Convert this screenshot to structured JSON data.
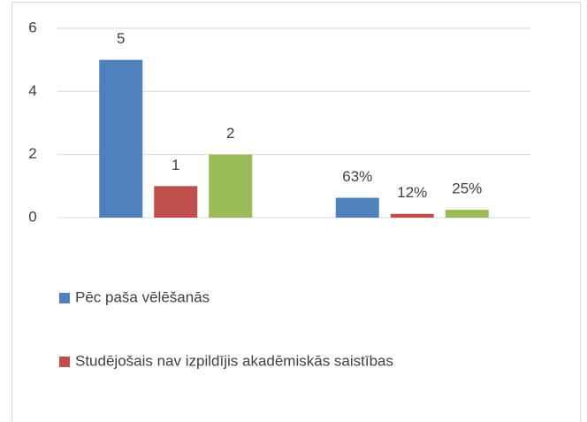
{
  "chart_data": {
    "type": "bar",
    "categories": [
      null,
      null
    ],
    "series": [
      {
        "name": "Pēc paša vēlēšanās",
        "color": "#4f81bd",
        "values": [
          5,
          0.63
        ],
        "value_labels": [
          "5",
          "63%"
        ]
      },
      {
        "name": "Studējošais nav izpildījis akadēmiskās saistības",
        "color": "#c0504d",
        "values": [
          1,
          0.12
        ],
        "value_labels": [
          "1",
          "12%"
        ]
      },
      {
        "color": "#9bbb59",
        "values": [
          2,
          0.25
        ],
        "value_labels": [
          "2",
          "25%"
        ]
      }
    ],
    "ylim": [
      0,
      6
    ],
    "yticks": [
      0,
      2,
      4,
      6
    ],
    "grid": true
  }
}
